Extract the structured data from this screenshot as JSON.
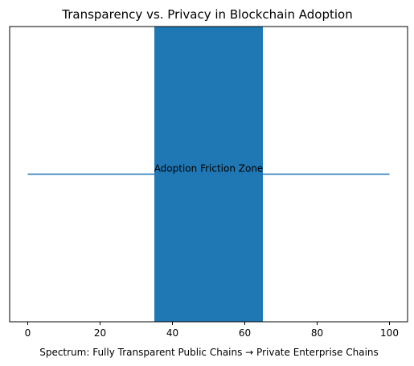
{
  "chart_data": {
    "type": "line",
    "title": "Transparency vs. Privacy in Blockchain Adoption",
    "xlabel": "Spectrum: Fully Transparent Public Chains  →  Private Enterprise Chains",
    "ylabel": "",
    "xlim": [
      -5,
      105
    ],
    "ylim": [
      0,
      1
    ],
    "x_ticks": [
      0,
      20,
      40,
      60,
      80,
      100
    ],
    "y_ticks": [],
    "grid": false,
    "series": [
      {
        "x": [
          0,
          100
        ],
        "y": [
          0.5,
          0.5
        ],
        "color": "#1f77b4"
      }
    ],
    "shaded_region": {
      "x_start": 35,
      "x_end": 65,
      "color": "#1f77b4"
    },
    "annotations": [
      {
        "text": "Adoption Friction Zone",
        "x": 50,
        "y": 0.5
      }
    ]
  }
}
